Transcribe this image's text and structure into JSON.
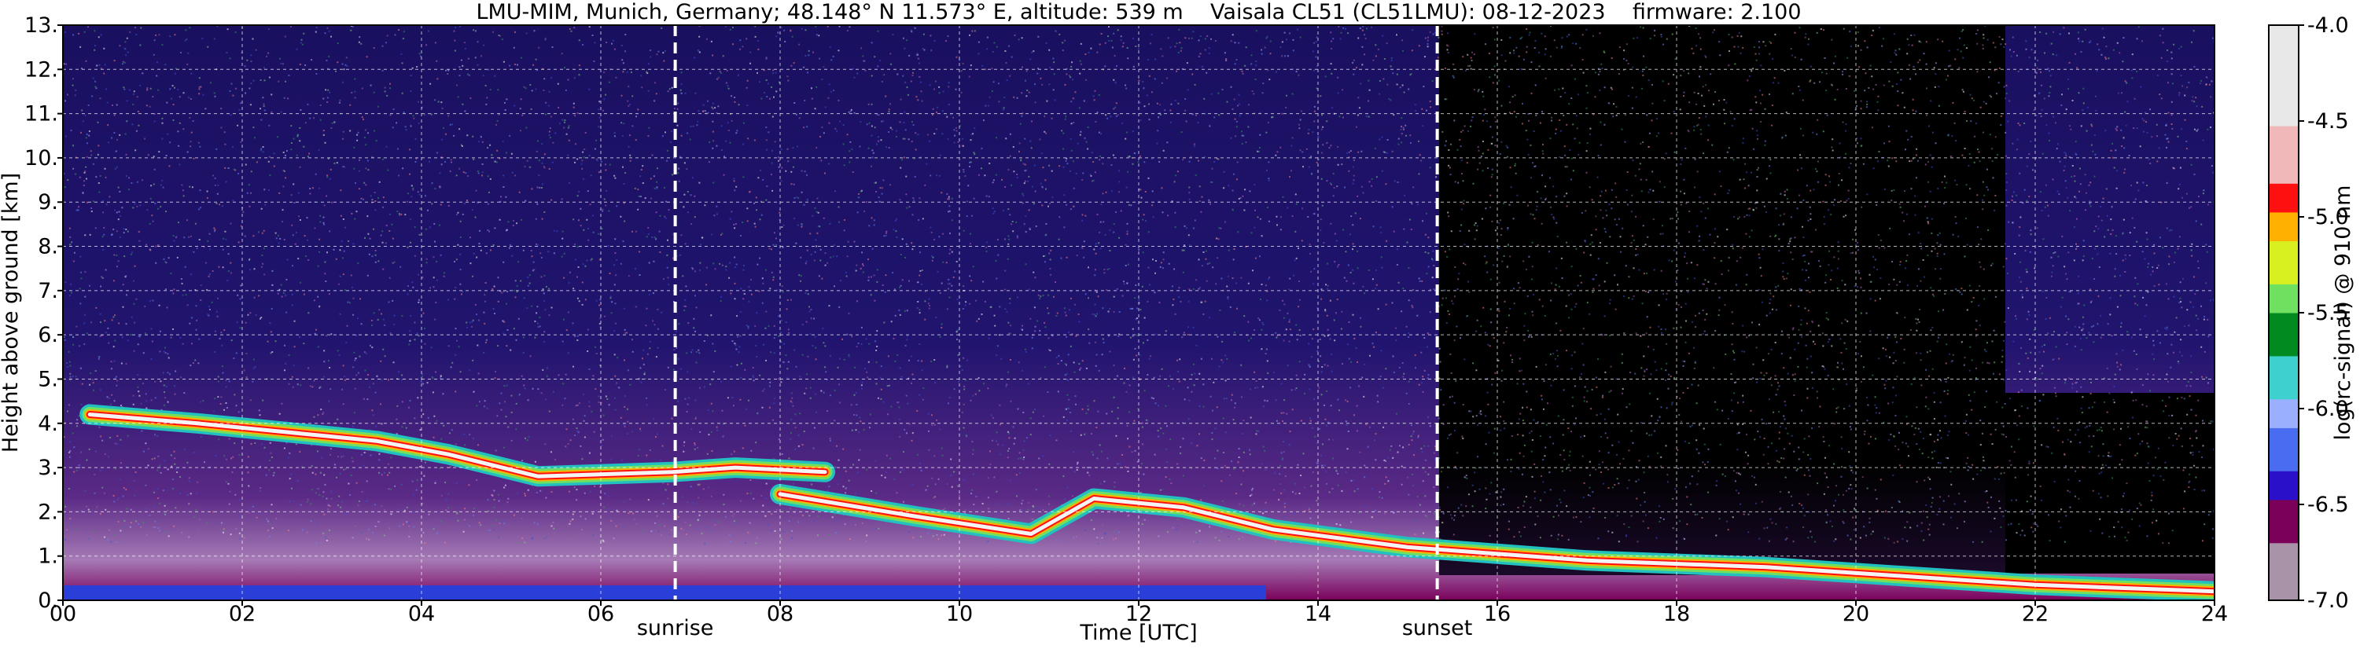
{
  "chart_data": {
    "type": "heatmap",
    "title": "LMU-MIM, Munich, Germany; 48.148° N 11.573° E, altitude: 539 m    Vaisala CL51 (CL51LMU): 08-12-2023    firmware: 2.100",
    "xlabel": "Time [UTC]",
    "ylabel": "Height above ground [km]",
    "xlim": [
      0,
      24
    ],
    "ylim": [
      0,
      13
    ],
    "x_ticks": [
      0,
      2,
      4,
      6,
      8,
      10,
      12,
      14,
      16,
      18,
      20,
      22,
      24
    ],
    "x_tick_labels": [
      "00",
      "02",
      "04",
      "06",
      "08",
      "10",
      "12",
      "14",
      "16",
      "18",
      "20",
      "22",
      "24"
    ],
    "y_ticks": [
      0,
      1,
      2,
      3,
      4,
      5,
      6,
      7,
      8,
      9,
      10,
      11,
      12,
      13
    ],
    "y_tick_labels": [
      "0.",
      "1.",
      "2.",
      "3.",
      "4.",
      "5.",
      "6.",
      "7.",
      "8.",
      "9.",
      "10.",
      "11.",
      "12.",
      "13."
    ],
    "grid": true,
    "markers": [
      {
        "label": "sunrise",
        "x": 6.83
      },
      {
        "label": "sunset",
        "x": 15.33
      }
    ],
    "colorbar": {
      "label": "log(rc-signal) @ 910 nm",
      "range": [
        -7.0,
        -4.0
      ],
      "ticks": [
        -4.0,
        -4.5,
        -5.0,
        -5.5,
        -6.0,
        -6.5,
        -7.0
      ],
      "tick_labels": [
        "-4.0",
        "-4.5",
        "-5.0",
        "-5.5",
        "-6.0",
        "-6.5",
        "-7.0"
      ],
      "stops": [
        {
          "v": -7.0,
          "color": "#a893a8"
        },
        {
          "v": -6.7,
          "color": "#7a005a"
        },
        {
          "v": -6.5,
          "color": "#2a10c8"
        },
        {
          "v": -6.35,
          "color": "#4a6cf0"
        },
        {
          "v": -6.1,
          "color": "#9ab0ff"
        },
        {
          "v": -5.95,
          "color": "#3ecfcf"
        },
        {
          "v": -5.75,
          "color": "#008a20"
        },
        {
          "v": -5.5,
          "color": "#70e060"
        },
        {
          "v": -5.35,
          "color": "#d8f020"
        },
        {
          "v": -5.15,
          "color": "#ffb000"
        },
        {
          "v": -5.0,
          "color": "#ff1010"
        },
        {
          "v": -4.85,
          "color": "#f0b8b8"
        },
        {
          "v": -4.5,
          "color": "#e8e8e8"
        },
        {
          "v": -4.0,
          "color": "#ffffff"
        }
      ]
    },
    "layers": [
      {
        "feature": "cloud layer",
        "points": [
          [
            0.3,
            4.2
          ],
          [
            1.5,
            4.0
          ],
          [
            2.5,
            3.8
          ],
          [
            3.5,
            3.6
          ],
          [
            4.3,
            3.3
          ],
          [
            5.3,
            2.8
          ],
          [
            6.8,
            2.9
          ],
          [
            7.5,
            3.0
          ],
          [
            8.5,
            2.9
          ]
        ]
      },
      {
        "feature": "cloud layer",
        "points": [
          [
            8.0,
            2.4
          ],
          [
            9.5,
            1.9
          ],
          [
            10.8,
            1.5
          ],
          [
            11.5,
            2.3
          ],
          [
            12.5,
            2.1
          ],
          [
            13.5,
            1.6
          ],
          [
            15.0,
            1.2
          ],
          [
            17.0,
            0.9
          ],
          [
            19.0,
            0.75
          ],
          [
            22.0,
            0.35
          ],
          [
            24.0,
            0.2
          ]
        ]
      }
    ]
  }
}
